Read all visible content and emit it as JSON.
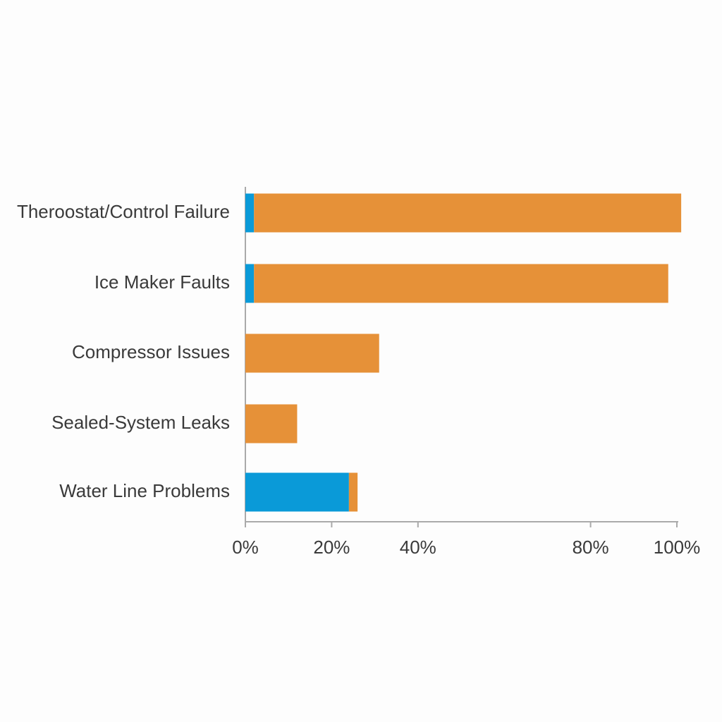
{
  "chart_data": {
    "type": "stacked_barh",
    "categories": [
      "Theroostat/Control Failure",
      "Ice Maker Faults",
      "Compressor Issues",
      "Sealed-System Leaks",
      "Water Line Problems"
    ],
    "series": [
      {
        "color": "#0a9ad8",
        "values": [
          2,
          2,
          0,
          0,
          24
        ]
      },
      {
        "color": "#e69138",
        "values": [
          99,
          96,
          31,
          12,
          2
        ]
      }
    ],
    "xlim": [
      0,
      100
    ],
    "xticks": [
      {
        "value": 0,
        "label": "0%"
      },
      {
        "value": 20,
        "label": "20%"
      },
      {
        "value": 40,
        "label": "40%"
      },
      {
        "value": 80,
        "label": "80%"
      },
      {
        "value": 100,
        "label": "100%"
      }
    ]
  }
}
